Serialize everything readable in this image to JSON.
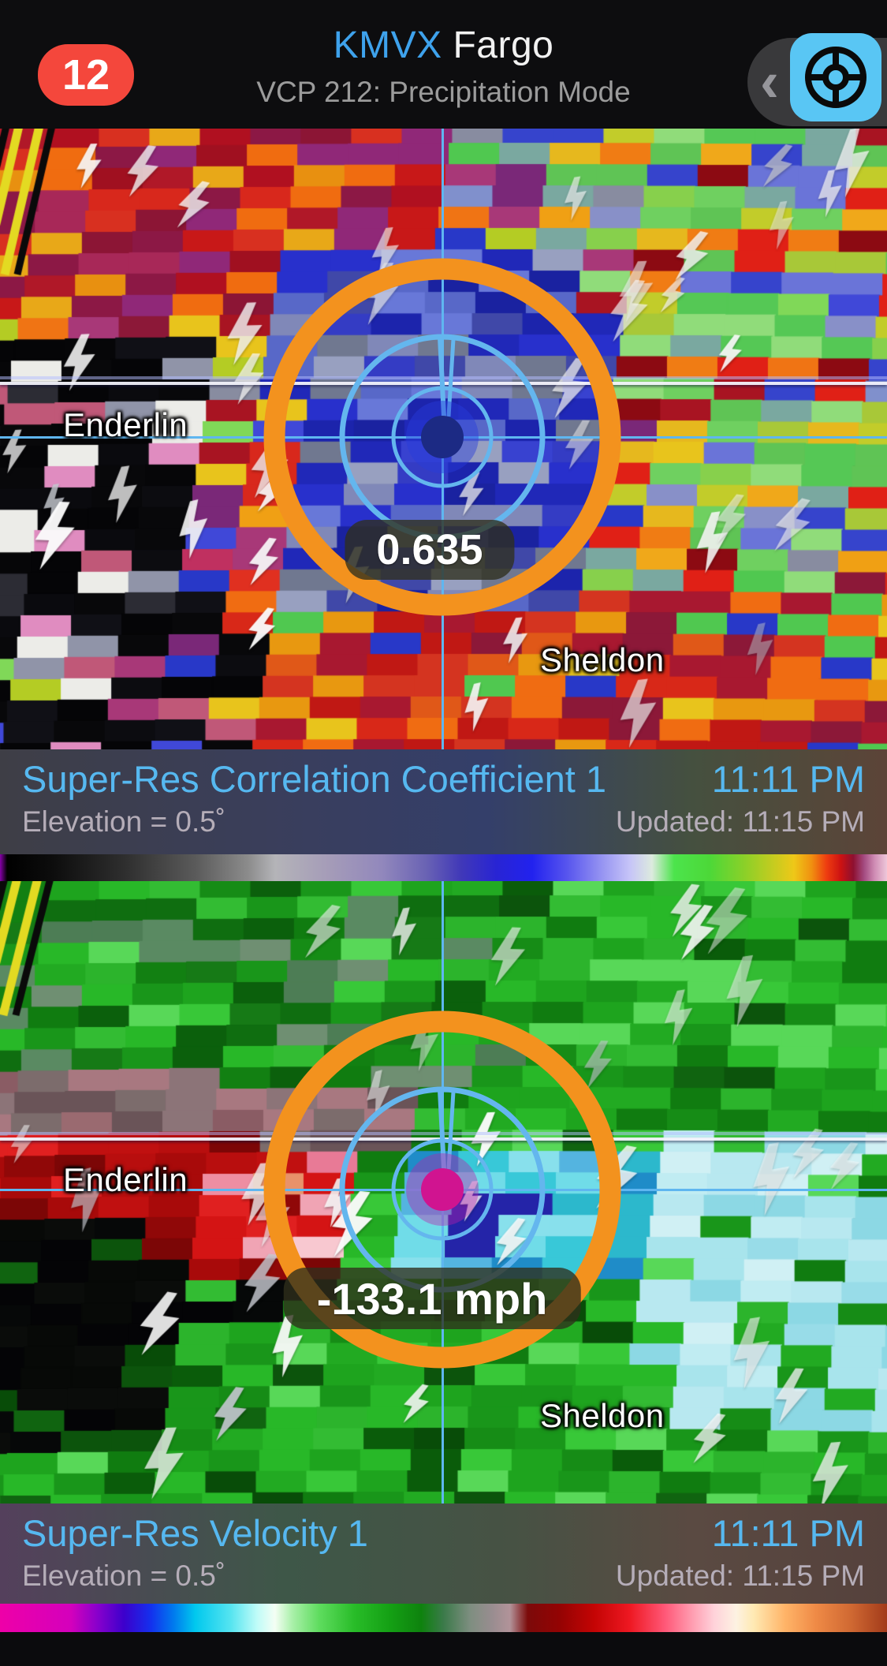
{
  "header": {
    "badge_count": "12",
    "station_id": "KMVX",
    "station_name": "Fargo",
    "mode_subtitle": "VCP 212: Precipitation Mode",
    "chevron": "‹"
  },
  "panels": [
    {
      "layer_title": "Super-Res Correlation Coefficient 1",
      "time": "11:11 PM",
      "elevation": "Elevation = 0.5˚",
      "updated": "Updated: 11:15 PM",
      "value_label": "0.635",
      "cities": [
        {
          "name": "Enderlin"
        },
        {
          "name": "Sheldon"
        }
      ],
      "dot_color": "#1c2a84",
      "dot_glow": "rgba(40,60,220,0.45)",
      "dot_ring": "rgba(110,150,250,0.65)"
    },
    {
      "layer_title": "Super-Res Velocity 1",
      "time": "11:11 PM",
      "elevation": "Elevation = 0.5˚",
      "updated": "Updated: 11:15 PM",
      "value_label": "-133.1 mph",
      "cities": [
        {
          "name": "Enderlin"
        },
        {
          "name": "Sheldon"
        }
      ],
      "dot_color": "#d01490",
      "dot_glow": "rgba(190,30,170,0.4)",
      "dot_ring": "rgba(255,130,220,0.55)"
    }
  ],
  "render": {
    "reticle": {
      "ring_color": "#f3921e",
      "inner_color": "#64b6ee"
    },
    "colorbars": [
      [
        "#8800aa 0%",
        "#000000 0.8%",
        "#0d0d0d 6%",
        "#2e2e2e 14%",
        "#5a5a5a 22%",
        "#8c8c8c 28%",
        "#b4b4b8 31%",
        "#a59cb8 37%",
        "#9288bc 43%",
        "#6a63b4 48%",
        "#4038b8 52%",
        "#2824d4 56%",
        "#2222ee 60%",
        "#5856ee 64%",
        "#9896f2 68%",
        "#c6c4f8 71%",
        "#dceade 73.5%",
        "#4ce44c 76%",
        "#4cd838 80%",
        "#8cd028 84%",
        "#c2cc20 87%",
        "#eec818 89.5%",
        "#f09010 91.5%",
        "#ee3c10 93.2%",
        "#cc1212 94.8%",
        "#8e1030 96.2%",
        "#a34a80 97.4%",
        "#cf8cb4 98.6%",
        "#eec8da 100%"
      ],
      [
        "#ee00a8 0%",
        "#d400bc 8%",
        "#8800cc 11%",
        "#3c00cc 14%",
        "#1430ee 17%",
        "#0078ee 19.5%",
        "#00c8ee 22%",
        "#55e4f0 26%",
        "#c0fcf8 29%",
        "#f4fef4 31%",
        "#a8f0a8 33%",
        "#5edc5e 36%",
        "#28bc28 40%",
        "#14a014 44%",
        "#0e820e 47.5%",
        "#3b7a4a 50%",
        "#7e8e80 53%",
        "#998d90 55.5%",
        "#b29399 57.5%",
        "#7c0a0a 59.5%",
        "#930303 63%",
        "#c40404 67%",
        "#ee1822 71%",
        "#ff5878 75%",
        "#ff9cb0 78%",
        "#ffd2da 80.5%",
        "#fdf2e2 83%",
        "#ffe9b2 85%",
        "#ffb468 88.5%",
        "#ef8a46 92%",
        "#cf6832 96%",
        "#a23a1a 100%"
      ]
    ],
    "panel_canvases": [
      {
        "seed": 7,
        "bolts": 38,
        "road": {
          "yellow": [
            [
              26,
              -20
            ],
            [
              52,
              6
            ]
          ],
          "black": [
            [
              10,
              -36
            ],
            [
              68,
              22
            ]
          ],
          "len": 185
        },
        "palettes": {
          "mixed": [
            "#d8281c",
            "#a81422",
            "#8c1838",
            "#f07414",
            "#f0a014",
            "#e8c41c",
            "#b4cc24",
            "#50c850",
            "#80d858",
            "#2838c8",
            "#4048d8",
            "#8090cc",
            "#a83878",
            "#7a2878",
            "#888ca0",
            "#c03060",
            "#e03020"
          ],
          "upperleft": [
            "#c81818",
            "#a01020",
            "#8c1535",
            "#f06c10",
            "#e89010",
            "#a82858",
            "#8c1845",
            "#d83020",
            "#b01828",
            "#e8a818",
            "#902878",
            "#d8281c",
            "#b01020"
          ],
          "black": [
            "#050507",
            "#0a0a0e",
            "#08080a",
            "#0c0c10",
            "#ecece8",
            "#e08cc0",
            "#9094a8",
            "#2c2c34",
            "#c05878",
            "#101016",
            "#050507",
            "#08080a",
            "#060608"
          ],
          "centerblue": [
            "#2028b8",
            "#1a22a0",
            "#3842d0",
            "#5868c8",
            "#8088b8",
            "#98a0c0",
            "#2830cc",
            "#6878d8",
            "#4048a8",
            "#707890",
            "#1c24ac",
            "#343cc4"
          ],
          "right": [
            "#55c855",
            "#6fd060",
            "#87d04c",
            "#a8c838",
            "#c2cc2a",
            "#e6b81e",
            "#f0a81a",
            "#90dc7a",
            "#3644cc",
            "#6a74d8",
            "#8890c8",
            "#8c0a12",
            "#e02016",
            "#f07c14",
            "#7aa8a0",
            "#5fc455"
          ],
          "bottom": [
            "#d82818",
            "#c01814",
            "#f06c12",
            "#e89810",
            "#e8c41c",
            "#a81830",
            "#8c1838",
            "#2838c8",
            "#50c850",
            "#d43420",
            "#e05818"
          ]
        }
      },
      {
        "seed": 13,
        "bolts": 34,
        "road": {
          "yellow": [
            [
              24,
              -22
            ],
            [
              50,
              4
            ]
          ],
          "black": [
            [
              8,
              -38
            ],
            [
              66,
              20
            ]
          ],
          "len": 170
        },
        "palettes": {
          "green": [
            "#28b828",
            "#1ea41e",
            "#38c838",
            "#168c16",
            "#107c10",
            "#58d858",
            "#22aa22",
            "#2cb42c",
            "#33bc33",
            "#19961a"
          ],
          "sage": [
            "#167a16",
            "#0f6e10",
            "#5a8a62",
            "#6f8f72",
            "#128012",
            "#0b600c",
            "#4d7d55"
          ],
          "mauve": [
            "#9a6a70",
            "#8a5c64",
            "#7c6c6c",
            "#a87880",
            "#6a5458",
            "#8c7478",
            "#96686e"
          ],
          "red": [
            "#c01010",
            "#a80a0a",
            "#d41414",
            "#900808",
            "#7c0606",
            "#e02020",
            "#b80e0e"
          ],
          "pink": [
            "#e87a96",
            "#f0a4b4",
            "#f8c8d0",
            "#f0d8dc",
            "#e8926a",
            "#f8b088",
            "#ee8ea2"
          ],
          "cyan": [
            "#38c8d8",
            "#70dce8",
            "#1f8cc8",
            "#2424a8",
            "#18188c",
            "#54b4e0",
            "#88e0ec",
            "#2cb8cc"
          ],
          "paleblue": [
            "#a8e4ec",
            "#c0ecf2",
            "#8cd8e4",
            "#b8e8f0",
            "#d0f0f4",
            "#98dce8"
          ],
          "darkgreen": [
            "#0a5c0a",
            "#084c08",
            "#106410",
            "#0c540c"
          ],
          "black": [
            "#060808",
            "#0a0c0a",
            "#040406",
            "#070907"
          ]
        }
      }
    ]
  }
}
